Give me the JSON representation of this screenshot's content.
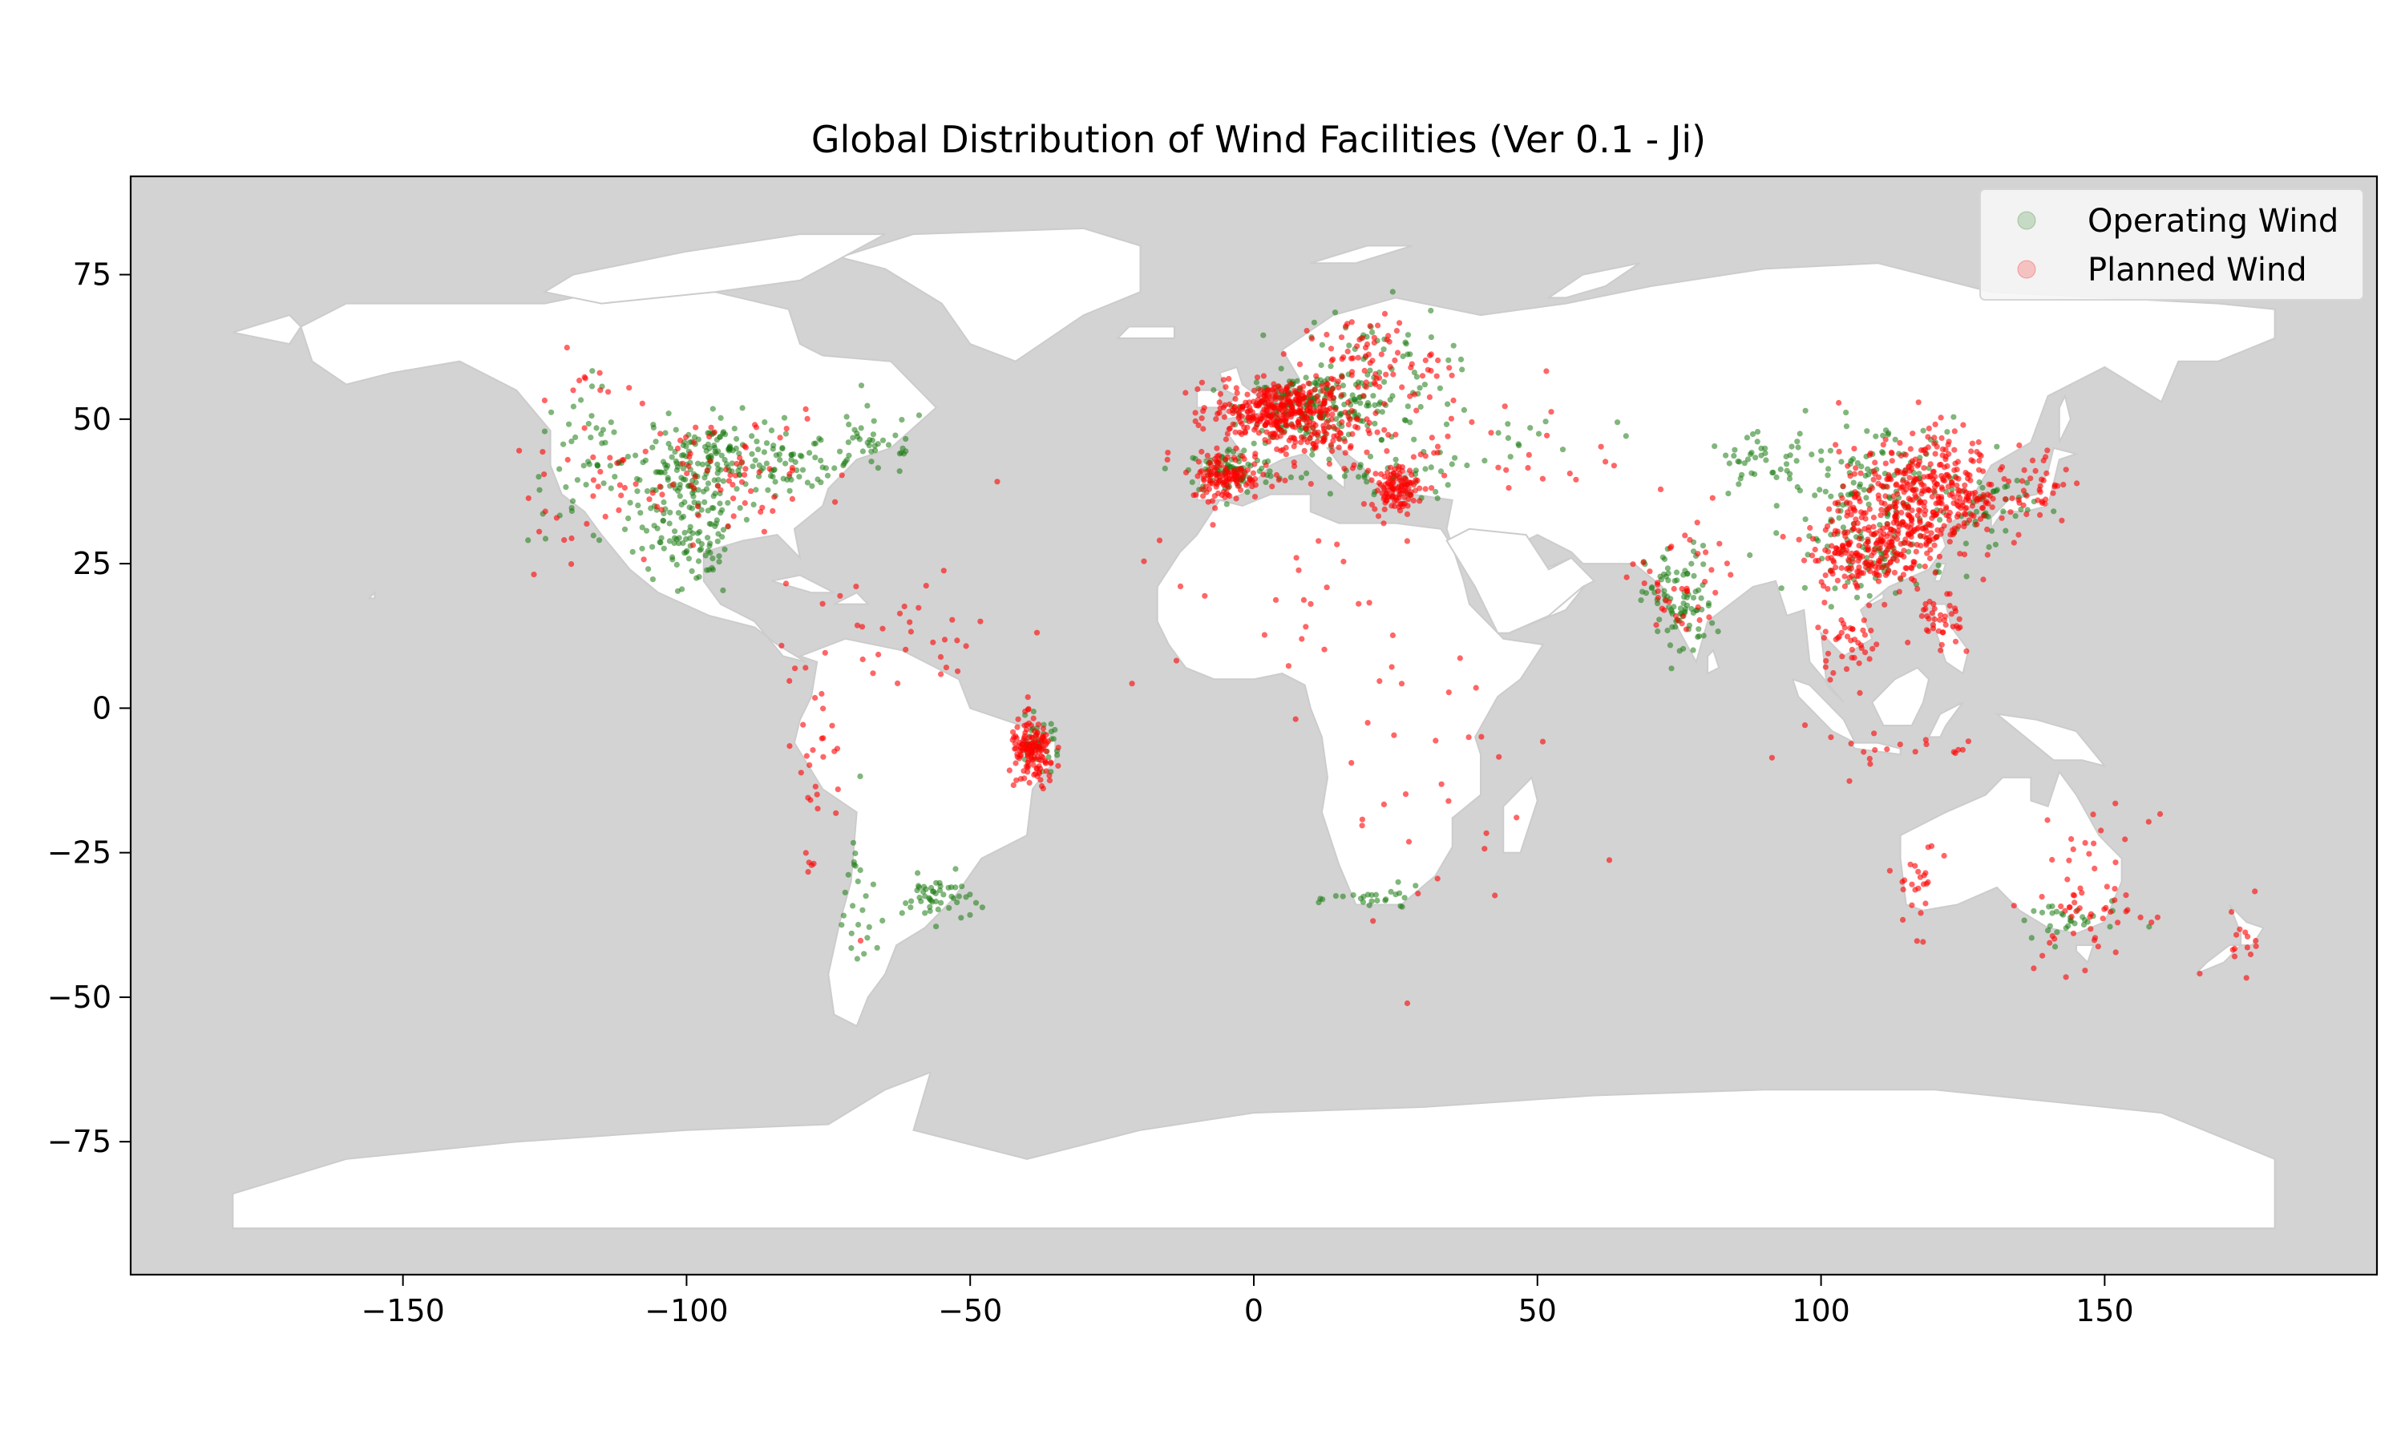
{
  "chart_data": {
    "type": "scatter",
    "title": "Global Distribution of Wind Facilities (Ver 0.1 - Ji)",
    "xlabel": "",
    "ylabel": "",
    "xlim": [
      -198,
      198
    ],
    "ylim": [
      -98,
      92
    ],
    "x_ticks": [
      -150,
      -100,
      -50,
      0,
      50,
      100,
      150
    ],
    "y_ticks": [
      75,
      50,
      25,
      0,
      -25,
      -50,
      -75
    ],
    "x_tick_labels": [
      "−150",
      "−100",
      "−50",
      "0",
      "50",
      "100",
      "150"
    ],
    "y_tick_labels": [
      "75",
      "50",
      "25",
      "0",
      "−25",
      "−50",
      "−75"
    ],
    "grid": false,
    "legend_position": "upper-right",
    "colors": {
      "ocean": "#d3d3d3",
      "land": "#ffffff",
      "border": "#cccccc",
      "operating": "#1a7a10",
      "planned": "#ff0000"
    },
    "series": [
      {
        "name": "Operating Wind",
        "color": "#1a7a10",
        "clusters": [
          {
            "lon": -100,
            "lat": 36,
            "slon": 5,
            "slat": 6,
            "n": 160
          },
          {
            "lon": -95,
            "lat": 45,
            "slon": 6,
            "slat": 3,
            "n": 80
          },
          {
            "lon": -82,
            "lat": 42,
            "slon": 6,
            "slat": 2,
            "n": 60
          },
          {
            "lon": -118,
            "lat": 42,
            "slon": 5,
            "slat": 7,
            "n": 50
          },
          {
            "lon": -67,
            "lat": 46,
            "slon": 5,
            "slat": 3,
            "n": 40
          },
          {
            "lon": -98,
            "lat": 25,
            "slon": 3,
            "slat": 3,
            "n": 30
          },
          {
            "lon": 10,
            "lat": 52,
            "slon": 6,
            "slat": 3,
            "n": 180
          },
          {
            "lon": -4,
            "lat": 41,
            "slon": 4,
            "slat": 2,
            "n": 90
          },
          {
            "lon": 20,
            "lat": 58,
            "slon": 7,
            "slat": 6,
            "n": 80
          },
          {
            "lon": 22,
            "lat": 40,
            "slon": 7,
            "slat": 2,
            "n": 40
          },
          {
            "lon": 75,
            "lat": 18,
            "slon": 3,
            "slat": 5,
            "n": 90
          },
          {
            "lon": 110,
            "lat": 38,
            "slon": 8,
            "slat": 6,
            "n": 140
          },
          {
            "lon": 110,
            "lat": 26,
            "slon": 6,
            "slat": 3,
            "n": 60
          },
          {
            "lon": 90,
            "lat": 43,
            "slon": 5,
            "slat": 2,
            "n": 40
          },
          {
            "lon": 130,
            "lat": 35,
            "slon": 4,
            "slat": 3,
            "n": 40
          },
          {
            "lon": -56,
            "lat": -33,
            "slon": 3,
            "slat": 2,
            "n": 50
          },
          {
            "lon": -38,
            "lat": -6,
            "slon": 2,
            "slat": 2,
            "n": 40
          },
          {
            "lon": 22,
            "lat": -33,
            "slon": 4,
            "slat": 1,
            "n": 25
          },
          {
            "lon": 143,
            "lat": -37,
            "slon": 5,
            "slat": 2,
            "n": 30
          },
          {
            "lon": -70,
            "lat": -35,
            "slon": 2,
            "slat": 9,
            "n": 25
          },
          {
            "lon": 45,
            "lat": 47,
            "slon": 10,
            "slat": 3,
            "n": 20
          }
        ]
      },
      {
        "name": "Planned Wind",
        "color": "#ff0000",
        "clusters": [
          {
            "lon": 3,
            "lat": 52,
            "slon": 5,
            "slat": 2,
            "n": 220
          },
          {
            "lon": 8,
            "lat": 49,
            "slon": 7,
            "slat": 4,
            "n": 200
          },
          {
            "lon": -5,
            "lat": 40,
            "slon": 3,
            "slat": 2,
            "n": 120
          },
          {
            "lon": 25,
            "lat": 38,
            "slon": 2,
            "slat": 2,
            "n": 110
          },
          {
            "lon": 20,
            "lat": 60,
            "slon": 6,
            "slat": 4,
            "n": 80
          },
          {
            "lon": 115,
            "lat": 35,
            "slon": 6,
            "slat": 5,
            "n": 300
          },
          {
            "lon": 108,
            "lat": 27,
            "slon": 5,
            "slat": 3,
            "n": 180
          },
          {
            "lon": 122,
            "lat": 42,
            "slon": 4,
            "slat": 4,
            "n": 80
          },
          {
            "lon": 105,
            "lat": 12,
            "slon": 3,
            "slat": 3,
            "n": 40
          },
          {
            "lon": 121,
            "lat": 14,
            "slon": 2,
            "slat": 3,
            "n": 40
          },
          {
            "lon": 138,
            "lat": 38,
            "slon": 3,
            "slat": 4,
            "n": 40
          },
          {
            "lon": 128,
            "lat": 36,
            "slon": 2,
            "slat": 1,
            "n": 30
          },
          {
            "lon": -39,
            "lat": -8,
            "slon": 2,
            "slat": 3,
            "n": 140
          },
          {
            "lon": -95,
            "lat": 42,
            "slon": 12,
            "slat": 5,
            "n": 70
          },
          {
            "lon": -118,
            "lat": 42,
            "slon": 6,
            "slat": 8,
            "n": 40
          },
          {
            "lon": 148,
            "lat": -33,
            "slon": 5,
            "slat": 7,
            "n": 60
          },
          {
            "lon": 117,
            "lat": -31,
            "slon": 2,
            "slat": 4,
            "n": 25
          },
          {
            "lon": 174,
            "lat": -40,
            "slon": 3,
            "slat": 3,
            "n": 15
          },
          {
            "lon": 30,
            "lat": -15,
            "slon": 12,
            "slat": 15,
            "n": 30
          },
          {
            "lon": 75,
            "lat": 20,
            "slon": 4,
            "slat": 6,
            "n": 40
          },
          {
            "lon": -77,
            "lat": -10,
            "slon": 3,
            "slat": 10,
            "n": 30
          },
          {
            "lon": -65,
            "lat": 12,
            "slon": 10,
            "slat": 5,
            "n": 30
          },
          {
            "lon": 45,
            "lat": 45,
            "slon": 15,
            "slat": 6,
            "n": 40
          },
          {
            "lon": 0,
            "lat": 20,
            "slon": 20,
            "slat": 12,
            "n": 30
          },
          {
            "lon": 110,
            "lat": -7,
            "slon": 12,
            "slat": 2,
            "n": 20
          }
        ]
      }
    ]
  }
}
